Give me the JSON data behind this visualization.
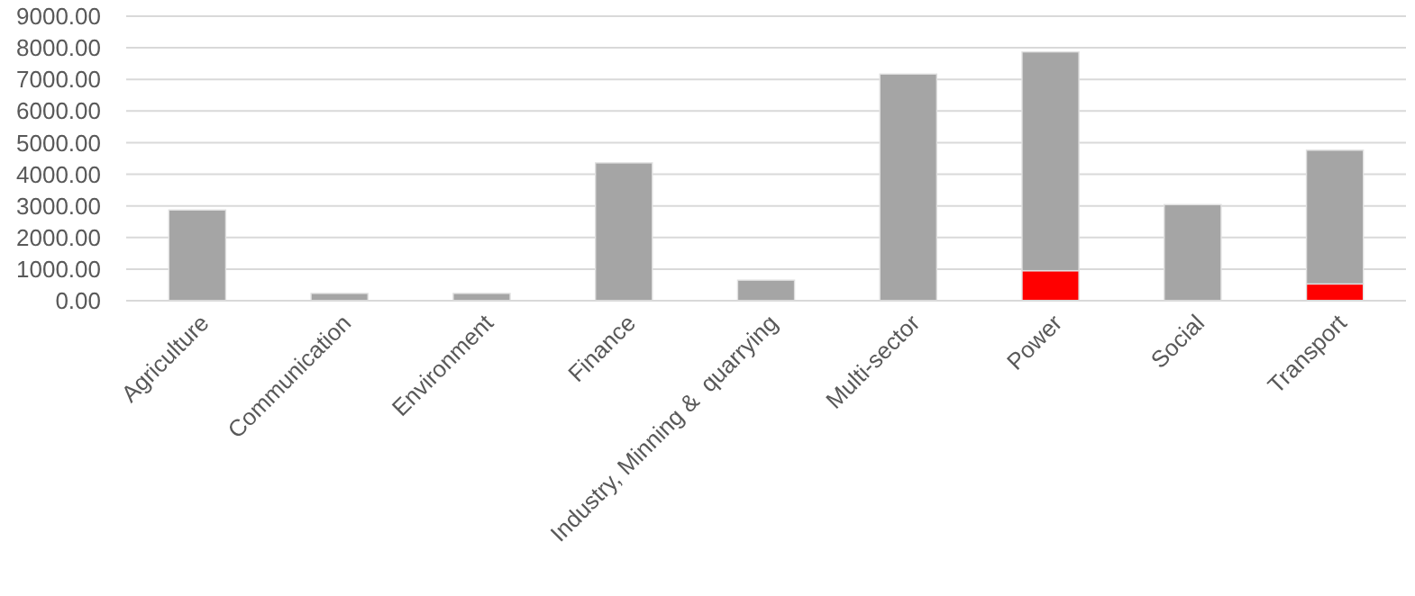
{
  "chart_data": {
    "type": "bar",
    "stacked": true,
    "categories": [
      "Agriculture",
      "Communication",
      "Environment",
      "Finance",
      "Industry, Minning &  quarrying",
      "Multi-sector",
      "Power",
      "Social",
      "Transport"
    ],
    "series": [
      {
        "color": "#ff0000",
        "values": [
          null,
          null,
          null,
          null,
          null,
          null,
          950,
          null,
          530
        ]
      },
      {
        "color": "#a5a5a5",
        "values": [
          2870,
          230,
          230,
          4360,
          650,
          7170,
          6920,
          3040,
          4230
        ]
      }
    ],
    "ylim": [
      0,
      9000
    ],
    "yticks": [
      {
        "value": 0,
        "label": "0.00"
      },
      {
        "value": 1000,
        "label": "1000.00"
      },
      {
        "value": 2000,
        "label": "2000.00"
      },
      {
        "value": 3000,
        "label": "3000.00"
      },
      {
        "value": 4000,
        "label": "4000.00"
      },
      {
        "value": 5000,
        "label": "5000.00"
      },
      {
        "value": 6000,
        "label": "6000.00"
      },
      {
        "value": 7000,
        "label": "7000.00"
      },
      {
        "value": 8000,
        "label": "8000.00"
      },
      {
        "value": 9000,
        "label": "9000.00"
      }
    ],
    "grid": "y"
  }
}
